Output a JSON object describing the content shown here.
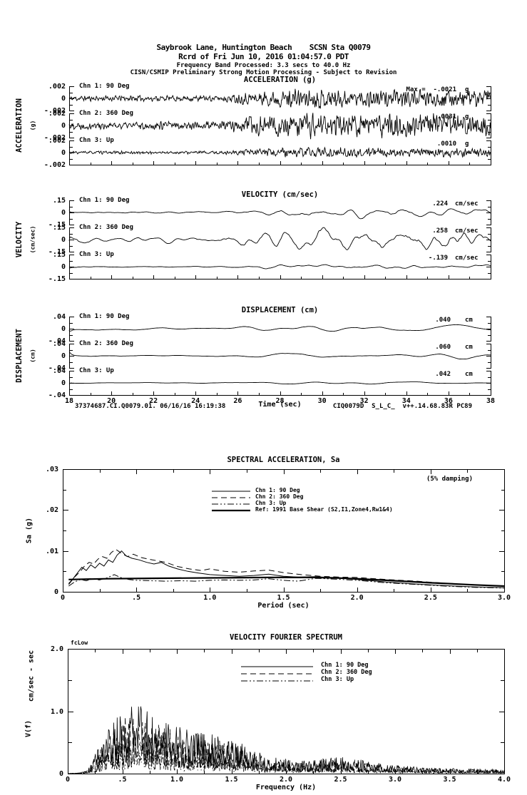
{
  "header": {
    "line1": "Saybrook Lane, Huntington Beach    SCSN Sta Q0079",
    "line2": "Rcrd of Fri Jun 10, 2016 01:04:57.0 PDT",
    "line3": "Frequency Band Processed: 3.3 secs to 40.0 Hz",
    "line4": "CISN/CSMIP Preliminary Strong Motion Processing - Subject to Revision"
  },
  "time_series": {
    "x_ticks": [
      "18",
      "20",
      "22",
      "24",
      "26",
      "28",
      "30",
      "32",
      "34",
      "36",
      "38"
    ],
    "x_label": "Time (sec)",
    "footer_left": "37374687.CI.Q0079.01. 06/16/16 16:19:38",
    "footer_right": "CIQ0079D  S_L_C_  v++.14.68.83R PC89",
    "groups": [
      {
        "id": "acceleration",
        "title": "ACCELERATION (g)",
        "side_label": "ACCELERATION",
        "side_unit": "(g)",
        "scales": [
          ".002",
          "0",
          "-.002"
        ],
        "channels": [
          {
            "label": "Chn 1: 90 Deg",
            "peak": "Max =  -.0021",
            "unit": "g"
          },
          {
            "label": "Chn 2: 360 Deg",
            "peak": ".0031",
            "unit": "g"
          },
          {
            "label": "Chn 3: Up",
            "peak": ".0010",
            "unit": "g"
          }
        ]
      },
      {
        "id": "velocity",
        "title": "VELOCITY (cm/sec)",
        "side_label": "VELOCITY",
        "side_unit": "(cm/sec)",
        "scales": [
          ".15",
          "0",
          "-.15"
        ],
        "channels": [
          {
            "label": "Chn 1: 90 Deg",
            "peak": ".224",
            "unit": "cm/sec"
          },
          {
            "label": "Chn 2: 360 Deg",
            "peak": ".258",
            "unit": "cm/sec"
          },
          {
            "label": "Chn 3: Up",
            "peak": "-.139",
            "unit": "cm/sec"
          }
        ]
      },
      {
        "id": "displacement",
        "title": "DISPLACEMENT (cm)",
        "side_label": "DISPLACEMENT",
        "side_unit": "(cm)",
        "scales": [
          ".04",
          "0",
          "-.04"
        ],
        "channels": [
          {
            "label": "Chn 1: 90 Deg",
            "peak": ".040",
            "unit": "cm"
          },
          {
            "label": "Chn 2: 360 Deg",
            "peak": ".060",
            "unit": "cm"
          },
          {
            "label": "Chn 3: Up",
            "peak": ".042",
            "unit": "cm"
          }
        ]
      }
    ]
  },
  "sa_chart": {
    "title": "SPECTRAL ACCELERATION, Sa",
    "damping_note": "(5% damping)",
    "y_label": "Sa (g)",
    "x_label": "Period (sec)",
    "y_ticks": [
      "0",
      ".01",
      ".02",
      ".03"
    ],
    "x_ticks": [
      "0",
      ".5",
      "1.0",
      "1.5",
      "2.0",
      "2.5",
      "3.0"
    ],
    "legend": [
      {
        "label": "Chn 1: 90 Deg",
        "style": "solid"
      },
      {
        "label": "Chn 2: 360 Deg",
        "style": "dash"
      },
      {
        "label": "Chn 3: Up",
        "style": "dashdotdot"
      },
      {
        "label": "Ref: 1991 Base Shear (S2,I1,Zone4,Rw1&4)",
        "style": "thick"
      }
    ]
  },
  "fourier_chart": {
    "title": "VELOCITY FOURIER SPECTRUM",
    "corner_marker": "fcLow",
    "y_label_unit": "cm/sec - sec",
    "y_label_func": "V(f)",
    "x_label": "Frequency (Hz)",
    "y_ticks": [
      "0",
      "1.0",
      "2.0"
    ],
    "x_ticks": [
      "0",
      ".5",
      "1.0",
      "1.5",
      "2.0",
      "2.5",
      "3.0",
      "3.5",
      "4.0"
    ],
    "legend": [
      {
        "label": "Chn 1: 90 Deg",
        "style": "solid"
      },
      {
        "label": "Chn 2: 360 Deg",
        "style": "dash"
      },
      {
        "label": "Chn 3: Up",
        "style": "dashdotdot"
      }
    ]
  },
  "chart_data": [
    {
      "type": "line",
      "id": "acceleration",
      "title": "ACCELERATION (g)",
      "xlabel": "Time (sec)",
      "xlim": [
        18,
        38
      ],
      "ylim_per_channel": [
        -0.002,
        0.002
      ],
      "units": "g",
      "series": [
        {
          "name": "Chn 1: 90 Deg",
          "peak_value": -0.0021
        },
        {
          "name": "Chn 2: 360 Deg",
          "peak_value": 0.0031
        },
        {
          "name": "Chn 3: Up",
          "peak_value": 0.001
        }
      ],
      "gen": {
        "seeds": [
          11,
          22,
          33
        ],
        "smooth": 2,
        "amps": [
          0.85,
          1.15,
          0.45
        ],
        "envelope": [
          [
            0,
            0.3
          ],
          [
            0.36,
            0.32
          ],
          [
            0.45,
            0.8
          ],
          [
            0.55,
            1.0
          ],
          [
            0.72,
            0.95
          ],
          [
            1,
            0.85
          ]
        ]
      }
    },
    {
      "type": "line",
      "id": "velocity",
      "title": "VELOCITY (cm/sec)",
      "xlabel": "Time (sec)",
      "xlim": [
        18,
        38
      ],
      "ylim_per_channel": [
        -0.15,
        0.15
      ],
      "units": "cm/sec",
      "series": [
        {
          "name": "Chn 1: 90 Deg",
          "peak_value": 0.224
        },
        {
          "name": "Chn 2: 360 Deg",
          "peak_value": 0.258
        },
        {
          "name": "Chn 3: Up",
          "peak_value": -0.139
        }
      ],
      "gen": {
        "seeds": [
          44,
          55,
          66
        ],
        "smooth": 16,
        "amps": [
          0.95,
          1.25,
          0.5
        ],
        "envelope": [
          [
            0,
            0.22
          ],
          [
            0.34,
            0.28
          ],
          [
            0.45,
            0.75
          ],
          [
            0.55,
            1.0
          ],
          [
            0.75,
            0.95
          ],
          [
            1,
            0.9
          ]
        ]
      }
    },
    {
      "type": "line",
      "id": "displacement",
      "title": "DISPLACEMENT (cm)",
      "xlabel": "Time (sec)",
      "xlim": [
        18,
        38
      ],
      "ylim_per_channel": [
        -0.04,
        0.04
      ],
      "units": "cm",
      "series": [
        {
          "name": "Chn 1: 90 Deg",
          "peak_value": 0.04
        },
        {
          "name": "Chn 2: 360 Deg",
          "peak_value": 0.06
        },
        {
          "name": "Chn 3: Up",
          "peak_value": 0.042
        }
      ],
      "gen": {
        "seeds": [
          77,
          88,
          99
        ],
        "smooth": 40,
        "amps": [
          0.65,
          0.95,
          0.3
        ],
        "envelope": [
          [
            0,
            0.35
          ],
          [
            0.4,
            0.45
          ],
          [
            0.5,
            1.0
          ],
          [
            0.66,
            0.85
          ],
          [
            0.85,
            0.95
          ],
          [
            1,
            0.8
          ]
        ]
      }
    },
    {
      "type": "line",
      "id": "spectral_acceleration",
      "title": "SPECTRAL ACCELERATION, Sa",
      "xlabel": "Period (sec)",
      "ylabel": "Sa (g)",
      "xlim": [
        0,
        3
      ],
      "ylim": [
        0,
        0.03
      ],
      "damping": "5%",
      "series": [
        {
          "name": "Chn 1: 90 Deg",
          "style": "solid",
          "points": [
            [
              0.04,
              0.002
            ],
            [
              0.07,
              0.0032
            ],
            [
              0.1,
              0.0046
            ],
            [
              0.13,
              0.006
            ],
            [
              0.16,
              0.0052
            ],
            [
              0.19,
              0.0066
            ],
            [
              0.22,
              0.0058
            ],
            [
              0.25,
              0.007
            ],
            [
              0.28,
              0.0063
            ],
            [
              0.31,
              0.0078
            ],
            [
              0.34,
              0.0072
            ],
            [
              0.37,
              0.009
            ],
            [
              0.4,
              0.01
            ],
            [
              0.43,
              0.0088
            ],
            [
              0.47,
              0.0082
            ],
            [
              0.52,
              0.0078
            ],
            [
              0.57,
              0.0072
            ],
            [
              0.62,
              0.0068
            ],
            [
              0.67,
              0.0072
            ],
            [
              0.72,
              0.0063
            ],
            [
              0.78,
              0.0056
            ],
            [
              0.85,
              0.005
            ],
            [
              0.92,
              0.0046
            ],
            [
              1.0,
              0.0042
            ],
            [
              1.1,
              0.004
            ],
            [
              1.2,
              0.0038
            ],
            [
              1.3,
              0.004
            ],
            [
              1.4,
              0.0043
            ],
            [
              1.5,
              0.0038
            ],
            [
              1.6,
              0.0036
            ],
            [
              1.72,
              0.0037
            ],
            [
              1.85,
              0.0034
            ],
            [
              2.0,
              0.003
            ],
            [
              2.2,
              0.0024
            ],
            [
              2.4,
              0.0019
            ],
            [
              2.6,
              0.0015
            ],
            [
              2.8,
              0.0012
            ],
            [
              3.0,
              0.001
            ]
          ]
        },
        {
          "name": "Chn 2: 360 Deg",
          "style": "dash",
          "points": [
            [
              0.04,
              0.0018
            ],
            [
              0.08,
              0.0036
            ],
            [
              0.12,
              0.005
            ],
            [
              0.15,
              0.0064
            ],
            [
              0.18,
              0.0072
            ],
            [
              0.21,
              0.0068
            ],
            [
              0.24,
              0.008
            ],
            [
              0.27,
              0.0086
            ],
            [
              0.3,
              0.0082
            ],
            [
              0.33,
              0.0096
            ],
            [
              0.36,
              0.0104
            ],
            [
              0.4,
              0.0094
            ],
            [
              0.44,
              0.0086
            ],
            [
              0.48,
              0.0092
            ],
            [
              0.53,
              0.0084
            ],
            [
              0.58,
              0.008
            ],
            [
              0.64,
              0.0076
            ],
            [
              0.7,
              0.0072
            ],
            [
              0.78,
              0.0062
            ],
            [
              0.86,
              0.0056
            ],
            [
              0.94,
              0.0052
            ],
            [
              1.0,
              0.0056
            ],
            [
              1.1,
              0.005
            ],
            [
              1.2,
              0.0048
            ],
            [
              1.3,
              0.0051
            ],
            [
              1.4,
              0.0053
            ],
            [
              1.5,
              0.0047
            ],
            [
              1.62,
              0.0042
            ],
            [
              1.75,
              0.0038
            ],
            [
              1.88,
              0.0036
            ],
            [
              2.0,
              0.0035
            ],
            [
              2.2,
              0.003
            ],
            [
              2.4,
              0.0026
            ],
            [
              2.6,
              0.0021
            ],
            [
              2.8,
              0.0017
            ],
            [
              3.0,
              0.0014
            ]
          ]
        },
        {
          "name": "Chn 3: Up",
          "style": "dashdotdot",
          "points": [
            [
              0.04,
              0.0014
            ],
            [
              0.08,
              0.0024
            ],
            [
              0.12,
              0.003
            ],
            [
              0.16,
              0.0027
            ],
            [
              0.2,
              0.0032
            ],
            [
              0.25,
              0.0029
            ],
            [
              0.3,
              0.0034
            ],
            [
              0.35,
              0.0042
            ],
            [
              0.4,
              0.0034
            ],
            [
              0.45,
              0.003
            ],
            [
              0.5,
              0.0028
            ],
            [
              0.6,
              0.0027
            ],
            [
              0.7,
              0.0026
            ],
            [
              0.8,
              0.0027
            ],
            [
              0.9,
              0.0026
            ],
            [
              1.0,
              0.0028
            ],
            [
              1.1,
              0.0029
            ],
            [
              1.2,
              0.0028
            ],
            [
              1.3,
              0.0029
            ],
            [
              1.4,
              0.0032
            ],
            [
              1.5,
              0.0028
            ],
            [
              1.6,
              0.0026
            ],
            [
              1.72,
              0.0033
            ],
            [
              1.85,
              0.0031
            ],
            [
              2.0,
              0.0028
            ],
            [
              2.2,
              0.0022
            ],
            [
              2.4,
              0.0018
            ],
            [
              2.6,
              0.0014
            ],
            [
              2.8,
              0.0011
            ],
            [
              3.0,
              0.0009
            ]
          ]
        },
        {
          "name": "Ref: 1991 Base Shear (S2,I1,Zone4,Rw1&4)",
          "style": "thick",
          "points": [
            [
              0.04,
              0.003
            ],
            [
              0.3,
              0.0032
            ],
            [
              0.6,
              0.0033
            ],
            [
              1.0,
              0.0034
            ],
            [
              1.4,
              0.0035
            ],
            [
              1.7,
              0.0035
            ],
            [
              1.85,
              0.0034
            ],
            [
              2.0,
              0.0032
            ],
            [
              2.2,
              0.0028
            ],
            [
              2.5,
              0.0022
            ],
            [
              2.8,
              0.0017
            ],
            [
              3.0,
              0.0014
            ]
          ]
        }
      ]
    },
    {
      "type": "line",
      "id": "velocity_fourier_spectrum",
      "title": "VELOCITY FOURIER SPECTRUM",
      "xlabel": "Frequency (Hz)",
      "ylabel": "V(f) cm/sec - sec",
      "xlim": [
        0,
        4
      ],
      "ylim": [
        0,
        2
      ],
      "peak_approx": {
        "frequency_hz": 0.6,
        "value": 1.2
      },
      "envelope": [
        [
          0.0,
          0.0
        ],
        [
          0.12,
          0.01
        ],
        [
          0.2,
          0.08
        ],
        [
          0.3,
          0.3
        ],
        [
          0.4,
          0.5
        ],
        [
          0.5,
          0.6
        ],
        [
          0.6,
          0.75
        ],
        [
          0.7,
          0.6
        ],
        [
          0.8,
          0.55
        ],
        [
          0.9,
          0.5
        ],
        [
          1.0,
          0.45
        ],
        [
          1.2,
          0.4
        ],
        [
          1.4,
          0.35
        ],
        [
          1.6,
          0.28
        ],
        [
          1.8,
          0.18
        ],
        [
          2.0,
          0.14
        ],
        [
          2.2,
          0.12
        ],
        [
          2.4,
          0.16
        ],
        [
          2.6,
          0.16
        ],
        [
          2.8,
          0.1
        ],
        [
          3.0,
          0.08
        ],
        [
          3.3,
          0.06
        ],
        [
          3.6,
          0.05
        ],
        [
          4.0,
          0.04
        ]
      ],
      "series": [
        {
          "name": "Chn 1: 90 Deg",
          "style": "solid",
          "seed": 111,
          "scale": 1.0
        },
        {
          "name": "Chn 2: 360 Deg",
          "style": "dash",
          "seed": 222,
          "scale": 0.88
        },
        {
          "name": "Chn 3: Up",
          "style": "dashdotdot",
          "seed": 333,
          "scale": 0.5
        }
      ]
    }
  ]
}
